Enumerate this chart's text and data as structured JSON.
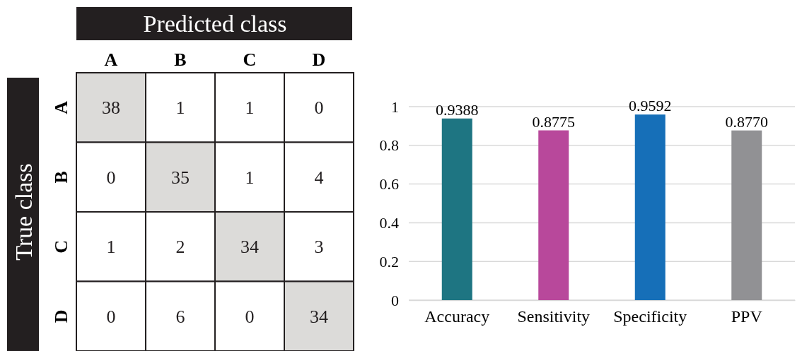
{
  "chart_data": [
    {
      "type": "heatmap",
      "xlabel": "Predicted class",
      "ylabel": "True class",
      "categories": [
        "A",
        "B",
        "C",
        "D"
      ],
      "y_categories": [
        "A",
        "B",
        "C",
        "D"
      ],
      "cells": [
        [
          38,
          1,
          1,
          0
        ],
        [
          0,
          35,
          1,
          4
        ],
        [
          1,
          2,
          34,
          3
        ],
        [
          0,
          6,
          0,
          34
        ]
      ],
      "data_labels": true
    },
    {
      "type": "bar",
      "categories": [
        "Accuracy",
        "Sensitivity",
        "Specificity",
        "PPV"
      ],
      "values": [
        0.9388,
        0.8775,
        0.9592,
        0.877
      ],
      "value_labels": [
        "0.9388",
        "0.8775",
        "0.9592",
        "0.8770"
      ],
      "colors": [
        "#1e7582",
        "#b8489b",
        "#166fb8",
        "#919194"
      ],
      "ylim": [
        0,
        1
      ],
      "yticks": [
        0,
        0.2,
        0.4,
        0.6,
        0.8,
        1
      ],
      "grid": "y"
    }
  ]
}
